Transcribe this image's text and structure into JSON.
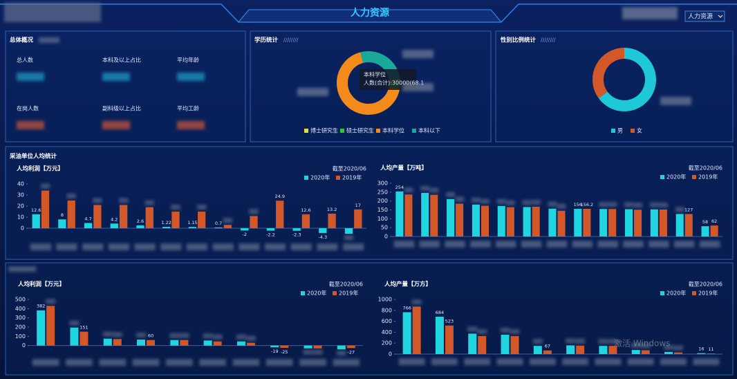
{
  "header": {
    "title": "人力资源",
    "dropdown": "人力资源"
  },
  "panels": {
    "overview": {
      "title": "总体概况",
      "labels": [
        "总人数",
        "本科及以上占比",
        "平均年龄",
        "在岗人数",
        "副科级以上占比",
        "平均工龄"
      ]
    },
    "unit_stats": {
      "title": "采油单位人均统计"
    }
  },
  "watermark": "激活 Windows",
  "chart_data": [
    {
      "type": "pie",
      "title": "学历统计",
      "categories": [
        "博士研究生",
        "硕士研究生",
        "本科学位",
        "本科以下"
      ],
      "values": [
        1,
        4,
        68.1,
        26.9
      ],
      "colors": [
        "#e6dc3a",
        "#2ecb2e",
        "#f28a1c",
        "#1aa89a"
      ],
      "tooltip": [
        "本科学位",
        "人数(合计):30000(68.1"
      ]
    },
    {
      "type": "pie",
      "title": "性别比例统计",
      "categories": [
        "男",
        "女"
      ],
      "values": [
        65,
        35
      ],
      "colors": [
        "#1fc8d8",
        "#d2582a"
      ]
    },
    {
      "type": "bar",
      "title": "人均利润【万元】",
      "note": "截至2020/06",
      "categories": [
        null,
        null,
        null,
        null,
        null,
        null,
        null,
        null,
        null,
        null,
        null,
        null,
        null
      ],
      "series": [
        {
          "name": "2020年",
          "color": "#1fd5e0",
          "values": [
            12.6,
            8,
            4.7,
            4.2,
            2.6,
            1.22,
            1.15,
            0.7,
            -2,
            -2.2,
            -2.3,
            -4.3,
            -5
          ],
          "value_labels": [
            "12.6",
            "8",
            "4.7",
            "4.2",
            "2.6",
            "1.22",
            "1.15",
            "0.7",
            "-2",
            "-2.2",
            "-2.3",
            "-4.3",
            null
          ]
        },
        {
          "name": "2019年",
          "color": "#d2582a",
          "values": [
            34,
            25,
            21,
            21,
            19,
            15,
            15,
            3,
            11,
            24.9,
            12.6,
            13.2,
            17
          ],
          "value_labels": [
            null,
            null,
            null,
            null,
            null,
            null,
            null,
            null,
            null,
            "24.9",
            "12.6",
            "13.2",
            "17"
          ]
        }
      ],
      "ylim": [
        -10,
        40
      ],
      "yticks": [
        0,
        10,
        20,
        30,
        40
      ]
    },
    {
      "type": "bar",
      "title": "人均产量【万吨】",
      "note": "截至2020/06",
      "categories": [
        null,
        null,
        null,
        null,
        null,
        null,
        null,
        null,
        null,
        null,
        null,
        null,
        null
      ],
      "series": [
        {
          "name": "2020年",
          "color": "#1fd5e0",
          "values": [
            254,
            246,
            211,
            180,
            172,
            166,
            157,
            156,
            155,
            154,
            153,
            127,
            58
          ],
          "value_labels": [
            "254",
            null,
            null,
            null,
            null,
            null,
            null,
            "156",
            null,
            null,
            null,
            null,
            "58"
          ]
        },
        {
          "name": "2019年",
          "color": "#d2582a",
          "values": [
            237,
            235,
            185,
            173,
            165,
            168,
            145,
            156.2,
            155,
            151,
            152,
            127,
            62
          ],
          "value_labels": [
            null,
            null,
            null,
            null,
            null,
            null,
            null,
            "156.2",
            null,
            null,
            null,
            "127",
            "62"
          ]
        }
      ],
      "ylim": [
        0,
        300
      ],
      "yticks": [
        0,
        50,
        100,
        150,
        200,
        250,
        300
      ]
    },
    {
      "type": "bar",
      "title": "人均利润【万元】",
      "note": "截至2020/06",
      "categories": [
        null,
        null,
        null,
        null,
        null,
        null,
        null,
        null,
        null,
        null
      ],
      "series": [
        {
          "name": "2020年",
          "color": "#1fd5e0",
          "values": [
            382,
            195,
            75,
            65,
            60,
            55,
            45,
            -19,
            -30,
            -40
          ],
          "value_labels": [
            "382",
            null,
            null,
            null,
            null,
            null,
            null,
            "-19",
            null,
            null
          ]
        },
        {
          "name": "2019年",
          "color": "#d2582a",
          "values": [
            430,
            151,
            70,
            60,
            60,
            45,
            30,
            -25,
            -30,
            -27
          ],
          "value_labels": [
            null,
            "151",
            null,
            "60",
            null,
            null,
            null,
            "-25",
            null,
            "-27"
          ]
        }
      ],
      "ylim": [
        -100,
        500
      ],
      "yticks": [
        0,
        100,
        200,
        300,
        400,
        500
      ]
    },
    {
      "type": "bar",
      "title": "人均产量【万方】",
      "note": "截至2020/06",
      "categories": [
        null,
        null,
        null,
        null,
        null,
        null,
        null,
        null,
        null,
        null
      ],
      "series": [
        {
          "name": "2020年",
          "color": "#1fd5e0",
          "values": [
            766,
            684,
            375,
            355,
            150,
            160,
            150,
            75,
            40,
            16
          ],
          "value_labels": [
            "766",
            "684",
            null,
            null,
            null,
            null,
            null,
            null,
            null,
            "16"
          ]
        },
        {
          "name": "2019年",
          "color": "#d2582a",
          "values": [
            870,
            523,
            330,
            330,
            67,
            155,
            150,
            70,
            30,
            11
          ],
          "value_labels": [
            null,
            "523",
            null,
            null,
            "67",
            null,
            null,
            null,
            null,
            "11"
          ]
        }
      ],
      "ylim": [
        0,
        1000
      ],
      "yticks": [
        0,
        200,
        400,
        600,
        800,
        1000
      ]
    }
  ]
}
